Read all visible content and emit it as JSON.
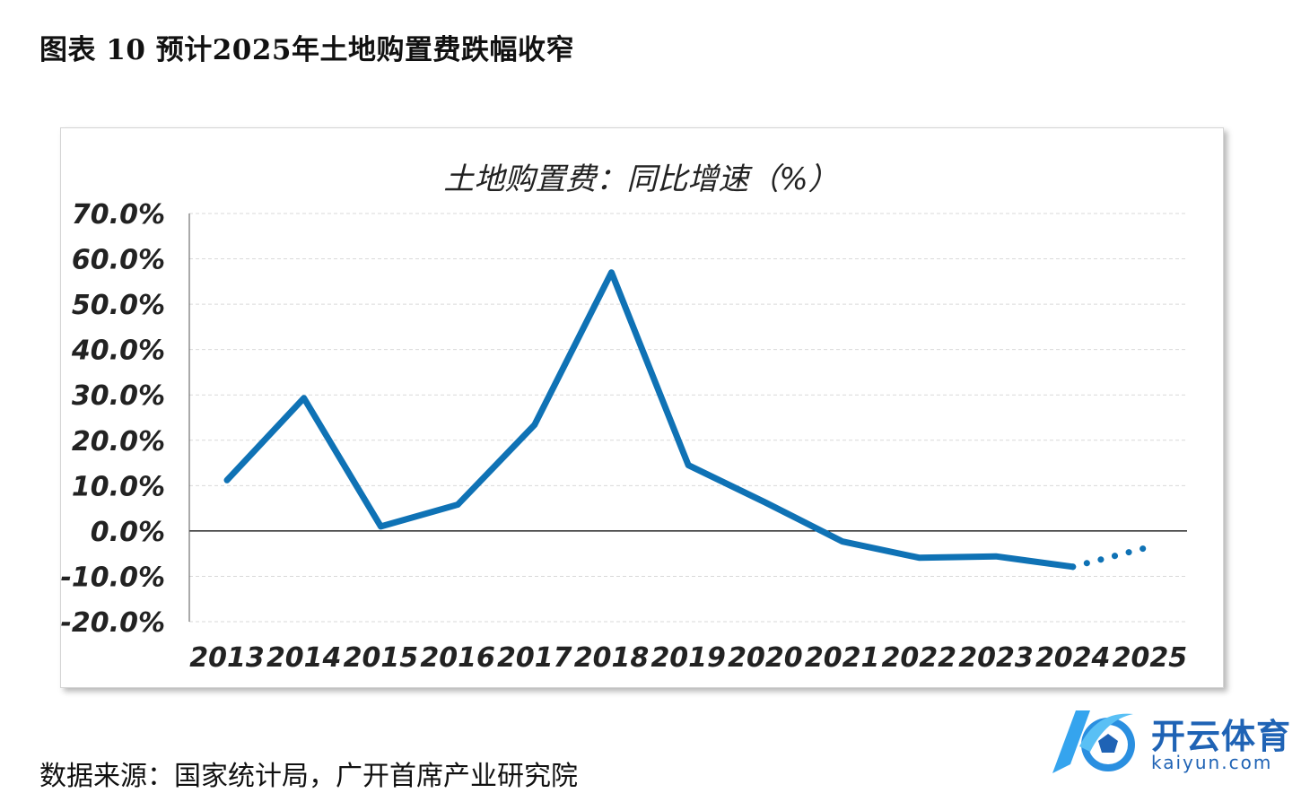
{
  "figure_title": "图表 10 预计2025年土地购置费跌幅收窄",
  "source": "数据来源：国家统计局，广开首席产业研究院",
  "logo": {
    "name": "开云体育",
    "url_text": "kaiyun.com"
  },
  "colors": {
    "line": "#0f72b5",
    "grid": "#d9d9d9",
    "axis": "#000000"
  },
  "chart_data": {
    "type": "line",
    "title": "土地购置费：同比增速（%）",
    "categories": [
      "2013",
      "2014",
      "2015",
      "2016",
      "2017",
      "2018",
      "2019",
      "2020",
      "2021",
      "2022",
      "2023",
      "2024",
      "2025"
    ],
    "series": [
      {
        "values": [
          11.2,
          29.3,
          1.0,
          5.8,
          23.4,
          57.0,
          14.5,
          6.3,
          -2.3,
          -5.9,
          -5.6,
          -7.9,
          null
        ]
      },
      {
        "values": [
          null,
          null,
          null,
          null,
          null,
          null,
          null,
          null,
          null,
          null,
          null,
          -7.9,
          -3.5
        ],
        "style": "dotted"
      }
    ],
    "ylim": [
      -20,
      70
    ],
    "yticks": [
      70,
      60,
      50,
      40,
      30,
      20,
      10,
      0,
      -10,
      -20
    ],
    "ytick_labels": [
      "70.0%",
      "60.0%",
      "50.0%",
      "40.0%",
      "30.0%",
      "20.0%",
      "10.0%",
      "0.0%",
      "-10.0%",
      "-20.0%"
    ],
    "grid": true
  }
}
